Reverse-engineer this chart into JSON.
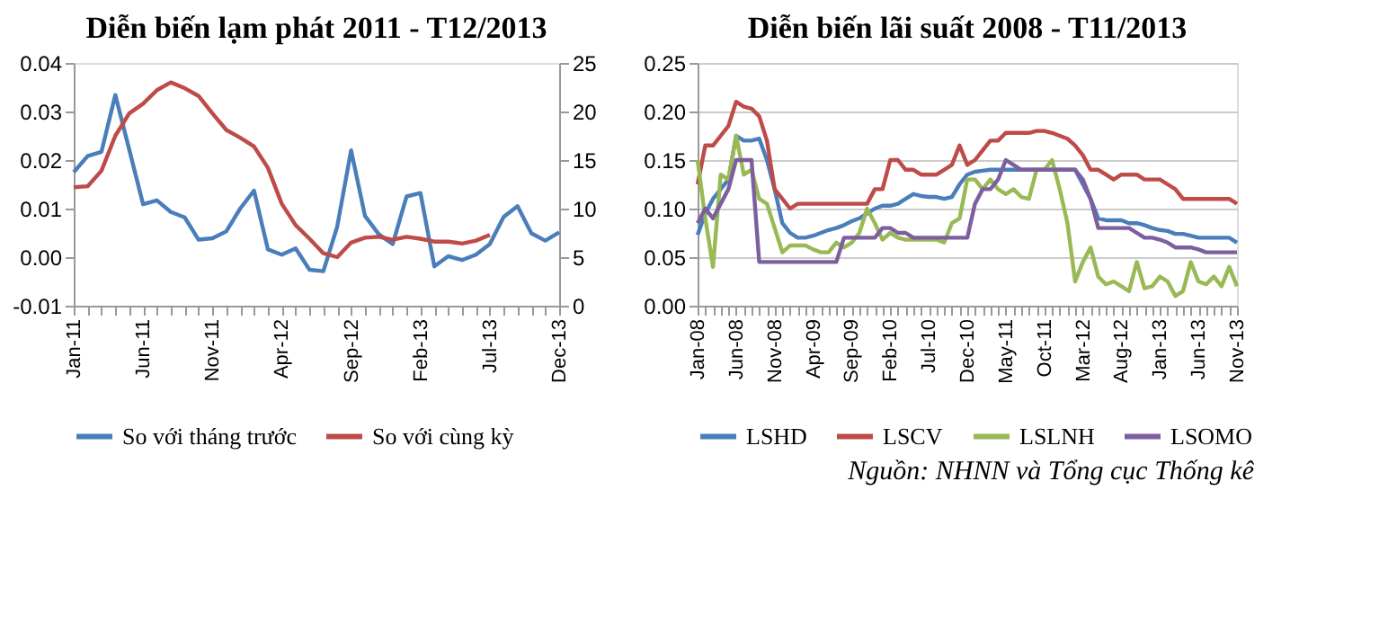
{
  "chart_data": [
    {
      "type": "line",
      "title": "Diễn biến lạm phát 2011 - T12/2013",
      "categories": [
        "Jan-11",
        null,
        null,
        null,
        null,
        "Jun-11",
        null,
        null,
        null,
        null,
        "Nov-11",
        null,
        null,
        null,
        null,
        "Apr-12",
        null,
        null,
        null,
        null,
        "Sep-12",
        null,
        null,
        null,
        null,
        "Feb-13",
        null,
        null,
        null,
        null,
        "Jul-13",
        null,
        null,
        null,
        null,
        "Dec-13"
      ],
      "series": [
        {
          "name": "So với tháng trước",
          "color": "#4a7ebb",
          "values": [
            0.0175,
            0.0208,
            0.0217,
            0.0334,
            0.0222,
            0.0109,
            0.0117,
            0.0093,
            0.0082,
            0.0036,
            0.0039,
            0.0053,
            0.01,
            0.0137,
            0.0016,
            0.0005,
            0.0018,
            -0.0026,
            -0.0029,
            0.0063,
            0.022,
            0.0085,
            0.0047,
            0.0027,
            0.0125,
            0.0132,
            -0.0019,
            0.0002,
            -0.0006,
            0.0005,
            0.0027,
            0.0083,
            0.0105,
            0.0049,
            0.0034,
            0.0051
          ]
        },
        {
          "name": "So với cùng kỳ",
          "color": "#be4b48",
          "axis": "y2",
          "values": [
            12.2,
            12.3,
            13.9,
            17.5,
            19.8,
            20.8,
            22.2,
            23.0,
            22.4,
            21.6,
            19.8,
            18.1,
            17.3,
            16.4,
            14.2,
            10.5,
            8.3,
            6.9,
            5.4,
            5.0,
            6.5,
            7.0,
            7.1,
            6.8,
            7.1,
            6.9,
            6.6,
            6.6,
            6.4,
            6.7,
            7.3,
            null,
            null,
            null,
            null,
            null
          ]
        }
      ],
      "ylim": [
        -0.01,
        0.04
      ],
      "yticks": [
        {
          "value": -0.01,
          "label": "-0.01"
        },
        {
          "value": 0,
          "label": "0.00"
        },
        {
          "value": 0.01,
          "label": "0.01"
        },
        {
          "value": 0.02,
          "label": "0.02"
        },
        {
          "value": 0.03,
          "label": "0.03"
        },
        {
          "value": 0.04,
          "label": "0.04"
        }
      ],
      "y2lim": [
        0,
        25
      ],
      "y2ticks": [
        0,
        5,
        10,
        15,
        20,
        25
      ],
      "legend": "bottom"
    },
    {
      "type": "line",
      "title": "Diễn biến lãi suất 2008 - T11/2013",
      "categories": [
        "Jan-08",
        null,
        null,
        null,
        null,
        "Jun-08",
        null,
        null,
        null,
        null,
        "Nov-08",
        null,
        null,
        null,
        null,
        "Apr-09",
        null,
        null,
        null,
        null,
        "Sep-09",
        null,
        null,
        null,
        null,
        "Feb-10",
        null,
        null,
        null,
        null,
        "Jul-10",
        null,
        null,
        null,
        null,
        "Dec-10",
        null,
        null,
        null,
        null,
        "May-11",
        null,
        null,
        null,
        null,
        "Oct-11",
        null,
        null,
        null,
        null,
        "Mar-12",
        null,
        null,
        null,
        null,
        "Aug-12",
        null,
        null,
        null,
        null,
        "Jan-13",
        null,
        null,
        null,
        null,
        "Jun-13",
        null,
        null,
        null,
        null,
        "Nov-13"
      ],
      "series": [
        {
          "name": "LSHD",
          "color": "#4a7ebb",
          "values": [
            0.073,
            0.095,
            0.11,
            0.12,
            0.13,
            0.175,
            0.17,
            0.17,
            0.172,
            0.15,
            0.12,
            0.085,
            0.075,
            0.07,
            0.07,
            0.072,
            0.075,
            0.078,
            0.08,
            0.083,
            0.087,
            0.09,
            0.095,
            0.1,
            0.103,
            0.103,
            0.105,
            0.11,
            0.115,
            0.113,
            0.112,
            0.112,
            0.11,
            0.112,
            0.125,
            0.135,
            0.138,
            0.139,
            0.14,
            0.14,
            0.14,
            0.14,
            0.14,
            0.14,
            0.14,
            0.14,
            0.14,
            0.14,
            0.14,
            0.14,
            0.125,
            0.11,
            0.09,
            0.088,
            0.088,
            0.088,
            0.085,
            0.085,
            0.083,
            0.08,
            0.078,
            0.077,
            0.074,
            0.074,
            0.072,
            0.07,
            0.07,
            0.07,
            0.07,
            0.07,
            0.065
          ]
        },
        {
          "name": "LSCV",
          "color": "#be4b48",
          "values": [
            0.125,
            0.165,
            0.165,
            0.175,
            0.185,
            0.21,
            0.205,
            0.203,
            0.195,
            0.17,
            0.12,
            0.11,
            0.1,
            0.105,
            0.105,
            0.105,
            0.105,
            0.105,
            0.105,
            0.105,
            0.105,
            0.105,
            0.105,
            0.12,
            0.12,
            0.15,
            0.15,
            0.14,
            0.14,
            0.135,
            0.135,
            0.135,
            0.14,
            0.145,
            0.165,
            0.145,
            0.15,
            0.16,
            0.17,
            0.17,
            0.178,
            0.178,
            0.178,
            0.178,
            0.18,
            0.18,
            0.178,
            0.175,
            0.172,
            0.165,
            0.155,
            0.14,
            0.14,
            0.135,
            0.13,
            0.135,
            0.135,
            0.135,
            0.13,
            0.13,
            0.13,
            0.125,
            0.12,
            0.11,
            0.11,
            0.11,
            0.11,
            0.11,
            0.11,
            0.11,
            0.105
          ]
        },
        {
          "name": "LSLNH",
          "color": "#98b954",
          "values": [
            0.15,
            0.09,
            0.04,
            0.135,
            0.13,
            0.175,
            0.135,
            0.14,
            0.11,
            0.105,
            0.08,
            0.055,
            0.062,
            0.062,
            0.062,
            0.058,
            0.055,
            0.055,
            0.065,
            0.06,
            0.065,
            0.075,
            0.1,
            0.085,
            0.068,
            0.075,
            0.07,
            0.068,
            0.068,
            0.068,
            0.068,
            0.068,
            0.065,
            0.085,
            0.09,
            0.13,
            0.13,
            0.12,
            0.13,
            0.12,
            0.115,
            0.12,
            0.112,
            0.11,
            0.14,
            0.14,
            0.15,
            0.12,
            0.085,
            0.025,
            0.045,
            0.06,
            0.03,
            0.022,
            0.025,
            0.02,
            0.015,
            0.045,
            0.018,
            0.02,
            0.03,
            0.025,
            0.01,
            0.015,
            0.045,
            0.025,
            0.022,
            0.03,
            0.02,
            0.04,
            0.02
          ]
        },
        {
          "name": "LSOMO",
          "color": "#7d5fa0",
          "values": [
            0.085,
            0.1,
            0.09,
            0.105,
            0.12,
            0.15,
            0.15,
            0.15,
            0.045,
            0.045,
            0.045,
            0.045,
            0.045,
            0.045,
            0.045,
            0.045,
            0.045,
            0.045,
            0.045,
            0.07,
            0.07,
            0.07,
            0.07,
            0.07,
            0.08,
            0.08,
            0.075,
            0.075,
            0.07,
            0.07,
            0.07,
            0.07,
            0.07,
            0.07,
            0.07,
            0.07,
            0.105,
            0.12,
            0.12,
            0.13,
            0.15,
            0.145,
            0.14,
            0.14,
            0.14,
            0.14,
            0.14,
            0.14,
            0.14,
            0.14,
            0.13,
            0.11,
            0.08,
            0.08,
            0.08,
            0.08,
            0.08,
            0.075,
            0.07,
            0.07,
            0.068,
            0.065,
            0.06,
            0.06,
            0.06,
            0.058,
            0.055,
            0.055,
            0.055,
            0.055,
            0.055
          ]
        }
      ],
      "ylim": [
        0,
        0.25
      ],
      "yticks": [
        {
          "value": 0,
          "label": "0.00"
        },
        {
          "value": 0.05,
          "label": "0.05"
        },
        {
          "value": 0.1,
          "label": "0.10"
        },
        {
          "value": 0.15,
          "label": "0.15"
        },
        {
          "value": 0.2,
          "label": "0.20"
        },
        {
          "value": 0.25,
          "label": "0.25"
        }
      ],
      "grid": "y",
      "legend": "bottom",
      "annotations": [
        "Nguồn: NHNN và Tổng cục Thống kê"
      ]
    }
  ]
}
